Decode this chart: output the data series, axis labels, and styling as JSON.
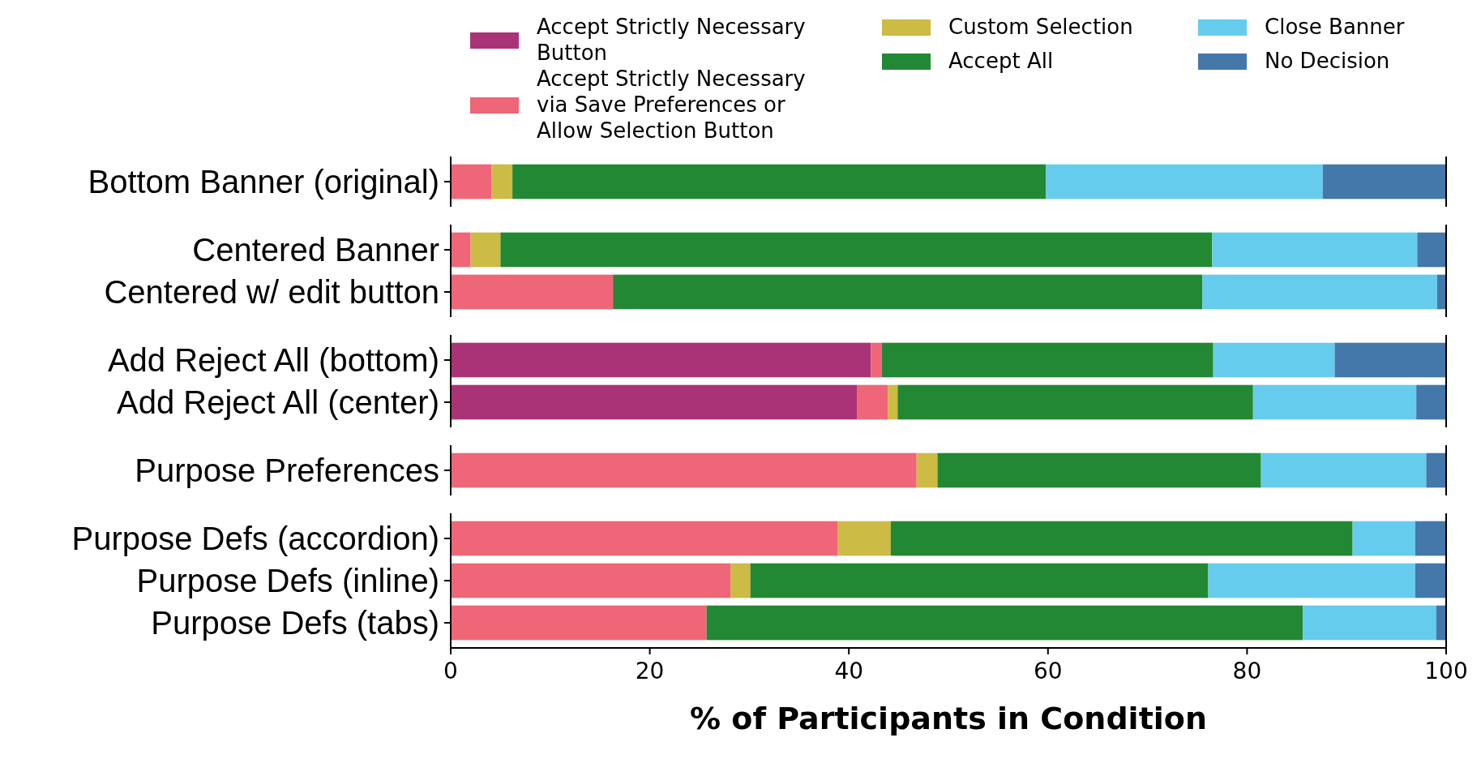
{
  "chart_data": [
    {
      "type": "bar",
      "orientation": "horizontal",
      "stacked": true,
      "categories": [
        "Bottom Banner (original)"
      ],
      "xlim": [
        0,
        100
      ],
      "tick_labels": "y",
      "legend": "top",
      "series": [
        {
          "name": "Accept Strictly Necessary Button",
          "color": "#aa3377",
          "values": [
            0
          ]
        },
        {
          "name": "Accept Strictly Necessary via Save Preferences or Allow Selection Button",
          "color": "#ee6677",
          "values": [
            4.1
          ]
        },
        {
          "name": "Custom Selection",
          "color": "#ccbb44",
          "values": [
            2.1
          ]
        },
        {
          "name": "Accept All",
          "color": "#228833",
          "values": [
            53.6
          ]
        },
        {
          "name": "Close Banner",
          "color": "#66ccee",
          "values": [
            27.8
          ]
        },
        {
          "name": "No Decision",
          "color": "#4477aa",
          "values": [
            12.4
          ]
        }
      ]
    },
    {
      "type": "bar",
      "orientation": "horizontal",
      "stacked": true,
      "categories": [
        "Centered Banner",
        "Centered w/ edit button"
      ],
      "xlim": [
        0,
        100
      ],
      "tick_labels": "y",
      "series": [
        {
          "color": "#aa3377",
          "values": [
            0,
            0
          ]
        },
        {
          "color": "#ee6677",
          "values": [
            2.0,
            16.3
          ]
        },
        {
          "color": "#ccbb44",
          "values": [
            3.0,
            0
          ]
        },
        {
          "color": "#228833",
          "values": [
            71.5,
            59.2
          ]
        },
        {
          "color": "#66ccee",
          "values": [
            20.6,
            23.6
          ]
        },
        {
          "color": "#4477aa",
          "values": [
            2.9,
            0.9
          ]
        }
      ]
    },
    {
      "type": "bar",
      "orientation": "horizontal",
      "stacked": true,
      "categories": [
        "Add Reject All (bottom)",
        "Add Reject All (center)"
      ],
      "xlim": [
        0,
        100
      ],
      "tick_labels": "y",
      "series": [
        {
          "color": "#aa3377",
          "values": [
            42.2,
            40.8
          ]
        },
        {
          "color": "#ee6677",
          "values": [
            1.1,
            3.1
          ]
        },
        {
          "color": "#ccbb44",
          "values": [
            0,
            1.0
          ]
        },
        {
          "color": "#228833",
          "values": [
            33.3,
            35.7
          ]
        },
        {
          "color": "#66ccee",
          "values": [
            12.2,
            16.4
          ]
        },
        {
          "color": "#4477aa",
          "values": [
            11.2,
            3.0
          ]
        }
      ]
    },
    {
      "type": "bar",
      "orientation": "horizontal",
      "stacked": true,
      "categories": [
        "Purpose Preferences"
      ],
      "xlim": [
        0,
        100
      ],
      "tick_labels": "y",
      "series": [
        {
          "color": "#aa3377",
          "values": [
            0
          ]
        },
        {
          "color": "#ee6677",
          "values": [
            46.8
          ]
        },
        {
          "color": "#ccbb44",
          "values": [
            2.1
          ]
        },
        {
          "color": "#228833",
          "values": [
            32.5
          ]
        },
        {
          "color": "#66ccee",
          "values": [
            16.6
          ]
        },
        {
          "color": "#4477aa",
          "values": [
            2.0
          ]
        }
      ]
    },
    {
      "type": "bar",
      "orientation": "horizontal",
      "stacked": true,
      "categories": [
        "Purpose Defs (accordion)",
        "Purpose Defs (inline)",
        "Purpose Defs (tabs)"
      ],
      "xlim": [
        0,
        100
      ],
      "xticks": [
        0,
        20,
        40,
        60,
        80,
        100
      ],
      "xlabel": "% of Participants in Condition",
      "series": [
        {
          "color": "#aa3377",
          "values": [
            0,
            0,
            0
          ]
        },
        {
          "color": "#ee6677",
          "values": [
            38.9,
            28.1,
            25.7
          ]
        },
        {
          "color": "#ccbb44",
          "values": [
            5.3,
            2.0,
            0
          ]
        },
        {
          "color": "#228833",
          "values": [
            46.4,
            46.0,
            59.9
          ]
        },
        {
          "color": "#66ccee",
          "values": [
            6.3,
            20.8,
            13.4
          ]
        },
        {
          "color": "#4477aa",
          "values": [
            3.1,
            3.1,
            1.0
          ]
        }
      ]
    }
  ]
}
